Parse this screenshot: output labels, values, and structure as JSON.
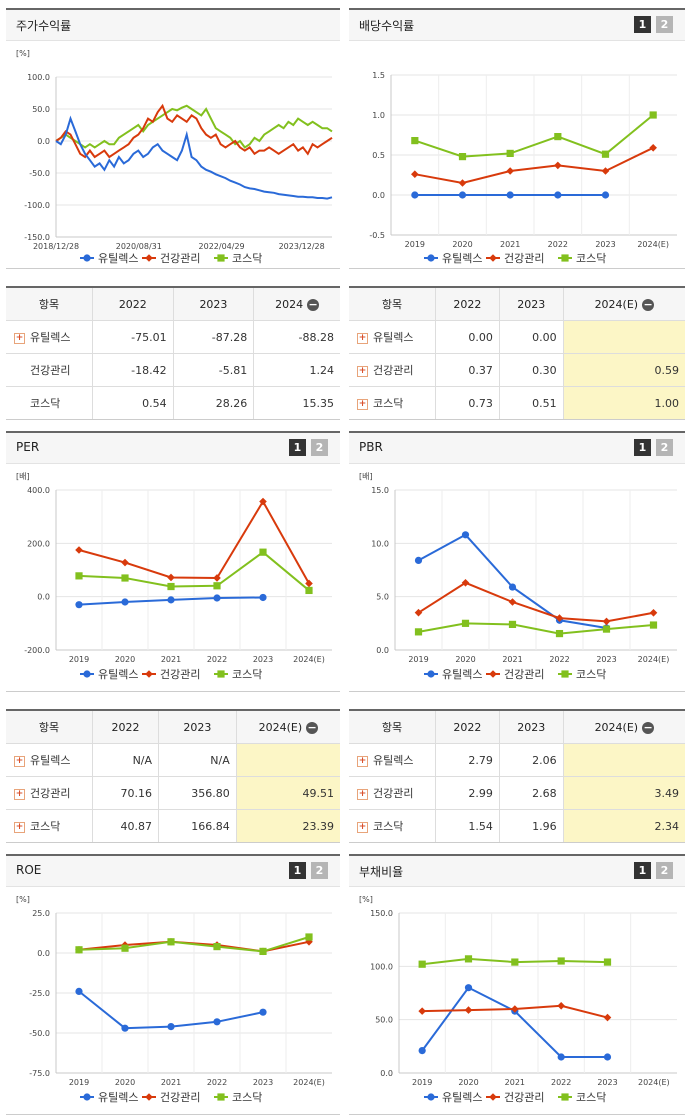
{
  "legend": [
    "유틸렉스",
    "건강관리",
    "코스닥"
  ],
  "colors": {
    "s0": "#2a6ad8",
    "s1": "#d83a0c",
    "s2": "#82c01e"
  },
  "stock_panel": {
    "title": "주가수익률",
    "unit": "[%]"
  },
  "dividend_panel": {
    "title": "배당수익률"
  },
  "per_panel": {
    "title": "PER",
    "unit": "[배]"
  },
  "pbr_panel": {
    "title": "PBR",
    "unit": "[배]"
  },
  "roe_panel": {
    "title": "ROE",
    "unit": "[%]"
  },
  "debt_panel": {
    "title": "부채비율",
    "unit": "[%]"
  },
  "page_buttons": [
    "1",
    "2"
  ],
  "table_stock": {
    "headers": [
      "항목",
      "2022",
      "2023",
      "2024"
    ],
    "rows": [
      {
        "name": "유틸렉스",
        "values": [
          "-75.01",
          "-87.28",
          "-88.28"
        ]
      },
      {
        "name": "건강관리",
        "values": [
          "-18.42",
          "-5.81",
          "1.24"
        ]
      },
      {
        "name": "코스닥",
        "values": [
          "0.54",
          "28.26",
          "15.35"
        ]
      }
    ]
  },
  "table_dividend": {
    "headers": [
      "항목",
      "2022",
      "2023",
      "2024(E)"
    ],
    "rows": [
      {
        "name": "유틸렉스",
        "values": [
          "0.00",
          "0.00",
          ""
        ]
      },
      {
        "name": "건강관리",
        "values": [
          "0.37",
          "0.30",
          "0.59"
        ]
      },
      {
        "name": "코스닥",
        "values": [
          "0.73",
          "0.51",
          "1.00"
        ]
      }
    ]
  },
  "table_per": {
    "headers": [
      "항목",
      "2022",
      "2023",
      "2024(E)"
    ],
    "rows": [
      {
        "name": "유틸렉스",
        "values": [
          "N/A",
          "N/A",
          ""
        ]
      },
      {
        "name": "건강관리",
        "values": [
          "70.16",
          "356.80",
          "49.51"
        ]
      },
      {
        "name": "코스닥",
        "values": [
          "40.87",
          "166.84",
          "23.39"
        ]
      }
    ]
  },
  "table_pbr": {
    "headers": [
      "항목",
      "2022",
      "2023",
      "2024(E)"
    ],
    "rows": [
      {
        "name": "유틸렉스",
        "values": [
          "2.79",
          "2.06",
          ""
        ]
      },
      {
        "name": "건강관리",
        "values": [
          "2.99",
          "2.68",
          "3.49"
        ]
      },
      {
        "name": "코스닥",
        "values": [
          "1.54",
          "1.96",
          "2.34"
        ]
      }
    ]
  },
  "chart_data": [
    {
      "id": "stock",
      "type": "line",
      "title": "주가수익률",
      "ylabel": "[%]",
      "ylim": [
        -150,
        100
      ],
      "yticks": [
        "100.0",
        "50.0",
        "0.0",
        "-50.0",
        "-100.0",
        "-150.0"
      ],
      "xticks": [
        "2018/12/28",
        "2020/08/31",
        "2022/04/29",
        "2023/12/28"
      ],
      "x_start": "2018/12/28",
      "x_end": "2024/06",
      "series": [
        {
          "name": "유틸렉스",
          "values": [
            0,
            -5,
            10,
            35,
            15,
            -5,
            -20,
            -30,
            -40,
            -35,
            -45,
            -30,
            -40,
            -25,
            -35,
            -30,
            -20,
            -15,
            -25,
            -20,
            -10,
            -5,
            -15,
            -20,
            -25,
            -30,
            -15,
            10,
            -25,
            -30,
            -40,
            -45,
            -48,
            -52,
            -55,
            -58,
            -62,
            -65,
            -68,
            -72,
            -74,
            -75,
            -77,
            -79,
            -80,
            -81,
            -83,
            -84,
            -85,
            -86,
            -87,
            -87,
            -88,
            -88,
            -89,
            -89,
            -90,
            -88
          ]
        },
        {
          "name": "건강관리",
          "values": [
            0,
            5,
            15,
            10,
            -5,
            -20,
            -25,
            -15,
            -25,
            -20,
            -15,
            -25,
            -20,
            -15,
            -10,
            -5,
            5,
            10,
            20,
            35,
            30,
            45,
            55,
            35,
            30,
            40,
            35,
            30,
            40,
            35,
            20,
            10,
            5,
            10,
            -5,
            -10,
            -5,
            0,
            -10,
            -15,
            -10,
            -20,
            -15,
            -15,
            -10,
            -15,
            -20,
            -15,
            -10,
            -5,
            -15,
            -10,
            -20,
            -5,
            -10,
            -5,
            0,
            5
          ]
        },
        {
          "name": "코스닥",
          "values": [
            0,
            5,
            10,
            5,
            0,
            -5,
            -10,
            -5,
            -10,
            -5,
            0,
            -5,
            -5,
            5,
            10,
            15,
            20,
            25,
            15,
            25,
            30,
            35,
            40,
            45,
            50,
            48,
            52,
            55,
            50,
            45,
            40,
            50,
            35,
            20,
            15,
            10,
            5,
            -5,
            0,
            -10,
            -5,
            5,
            0,
            10,
            15,
            20,
            25,
            20,
            30,
            25,
            35,
            30,
            25,
            30,
            25,
            20,
            20,
            15
          ]
        }
      ]
    },
    {
      "id": "dividend",
      "type": "line",
      "title": "배당수익률",
      "ylim": [
        -0.5,
        1.5
      ],
      "yticks": [
        "1.5",
        "1.0",
        "0.5",
        "0.0",
        "-0.5"
      ],
      "categories": [
        "2019",
        "2020",
        "2021",
        "2022",
        "2023",
        "2024(E)"
      ],
      "series": [
        {
          "name": "유틸렉스",
          "values": [
            0.0,
            0.0,
            0.0,
            0.0,
            0.0,
            null
          ]
        },
        {
          "name": "건강관리",
          "values": [
            0.26,
            0.15,
            0.3,
            0.37,
            0.3,
            0.59
          ]
        },
        {
          "name": "코스닥",
          "values": [
            0.68,
            0.48,
            0.52,
            0.73,
            0.51,
            1.0
          ]
        }
      ]
    },
    {
      "id": "per",
      "type": "line",
      "title": "PER",
      "ylabel": "[배]",
      "ylim": [
        -200,
        400
      ],
      "yticks": [
        "400.0",
        "200.0",
        "0.0",
        "-200.0"
      ],
      "categories": [
        "2019",
        "2020",
        "2021",
        "2022",
        "2023",
        "2024(E)"
      ],
      "series": [
        {
          "name": "유틸렉스",
          "values": [
            -30,
            -20,
            -12,
            -5,
            -3,
            null
          ]
        },
        {
          "name": "건강관리",
          "values": [
            175,
            128,
            72,
            70.16,
            356.8,
            49.51
          ]
        },
        {
          "name": "코스닥",
          "values": [
            78,
            70,
            38,
            40.87,
            166.84,
            23.39
          ]
        }
      ]
    },
    {
      "id": "pbr",
      "type": "line",
      "title": "PBR",
      "ylabel": "[배]",
      "ylim": [
        0,
        15
      ],
      "yticks": [
        "15.0",
        "10.0",
        "5.0",
        "0.0"
      ],
      "categories": [
        "2019",
        "2020",
        "2021",
        "2022",
        "2023",
        "2024(E)"
      ],
      "series": [
        {
          "name": "유틸렉스",
          "values": [
            8.4,
            10.8,
            5.9,
            2.79,
            2.06,
            null
          ]
        },
        {
          "name": "건강관리",
          "values": [
            3.5,
            6.3,
            4.5,
            2.99,
            2.68,
            3.49
          ]
        },
        {
          "name": "코스닥",
          "values": [
            1.7,
            2.5,
            2.4,
            1.54,
            1.96,
            2.34
          ]
        }
      ]
    },
    {
      "id": "roe",
      "type": "line",
      "title": "ROE",
      "ylabel": "[%]",
      "ylim": [
        -75,
        25
      ],
      "yticks": [
        "25.0",
        "0.0",
        "-25.0",
        "-50.0",
        "-75.0"
      ],
      "categories": [
        "2019",
        "2020",
        "2021",
        "2022",
        "2023",
        "2024(E)"
      ],
      "series": [
        {
          "name": "유틸렉스",
          "values": [
            -24,
            -47,
            -46,
            -43,
            -37,
            null
          ]
        },
        {
          "name": "건강관리",
          "values": [
            2,
            5,
            7,
            5,
            1,
            7
          ]
        },
        {
          "name": "코스닥",
          "values": [
            2,
            3,
            7,
            4,
            1,
            10
          ]
        }
      ]
    },
    {
      "id": "debt",
      "type": "line",
      "title": "부채비율",
      "ylabel": "[%]",
      "ylim": [
        0,
        150
      ],
      "yticks": [
        "150.0",
        "100.0",
        "50.0",
        "0.0"
      ],
      "categories": [
        "2019",
        "2020",
        "2021",
        "2022",
        "2023",
        "2024(E)"
      ],
      "series": [
        {
          "name": "유틸렉스",
          "values": [
            21,
            80,
            58,
            15,
            15,
            null
          ]
        },
        {
          "name": "건강관리",
          "values": [
            58,
            59,
            60,
            63,
            52,
            null
          ]
        },
        {
          "name": "코스닥",
          "values": [
            102,
            107,
            104,
            105,
            104,
            null
          ]
        }
      ]
    }
  ]
}
